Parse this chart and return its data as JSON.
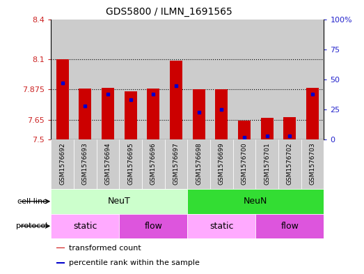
{
  "title": "GDS5800 / ILMN_1691565",
  "samples": [
    "GSM1576692",
    "GSM1576693",
    "GSM1576694",
    "GSM1576695",
    "GSM1576696",
    "GSM1576697",
    "GSM1576698",
    "GSM1576699",
    "GSM1576700",
    "GSM1576701",
    "GSM1576702",
    "GSM1576703"
  ],
  "transformed_count": [
    8.1,
    7.882,
    7.885,
    7.863,
    7.884,
    8.092,
    7.875,
    7.878,
    7.643,
    7.665,
    7.668,
    7.885
  ],
  "percentile_rank": [
    47,
    28,
    38,
    33,
    38,
    45,
    23,
    25,
    2,
    3,
    3,
    38
  ],
  "bar_bottom": 7.5,
  "ylim_left": [
    7.5,
    8.4
  ],
  "ylim_right": [
    0,
    100
  ],
  "yticks_left": [
    7.5,
    7.65,
    7.875,
    8.1,
    8.4
  ],
  "ytick_labels_left": [
    "7.5",
    "7.65",
    "7.875",
    "8.1",
    "8.4"
  ],
  "yticks_right": [
    0,
    25,
    50,
    75,
    100
  ],
  "ytick_labels_right": [
    "0",
    "25",
    "50",
    "75",
    "100%"
  ],
  "hlines": [
    7.65,
    7.875,
    8.1
  ],
  "bar_color": "#cc0000",
  "dot_color": "#0000cc",
  "bar_width": 0.55,
  "cell_line_groups": [
    {
      "label": "NeuT",
      "start": 0,
      "end": 6,
      "color": "#ccffcc"
    },
    {
      "label": "NeuN",
      "start": 6,
      "end": 12,
      "color": "#33dd33"
    }
  ],
  "protocol_groups": [
    {
      "label": "static",
      "start": 0,
      "end": 3,
      "color": "#ffaaff"
    },
    {
      "label": "flow",
      "start": 3,
      "end": 6,
      "color": "#dd55dd"
    },
    {
      "label": "static",
      "start": 6,
      "end": 9,
      "color": "#ffaaff"
    },
    {
      "label": "flow",
      "start": 9,
      "end": 12,
      "color": "#dd55dd"
    }
  ],
  "legend_items": [
    {
      "label": "transformed count",
      "color": "#cc0000"
    },
    {
      "label": "percentile rank within the sample",
      "color": "#0000cc"
    }
  ],
  "tick_label_color_left": "#cc2222",
  "tick_label_color_right": "#2222cc",
  "col_bg_color": "#cccccc",
  "plot_bg": "#ffffff",
  "fig_width": 5.23,
  "fig_height": 3.93,
  "fig_dpi": 100
}
